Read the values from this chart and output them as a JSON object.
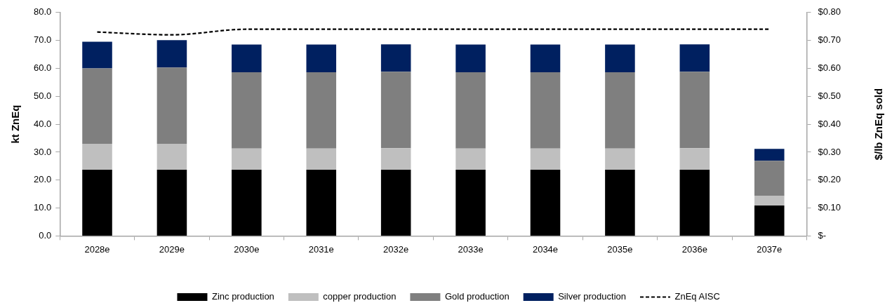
{
  "chart_data": {
    "type": "bar",
    "stacked": true,
    "categories": [
      "2028e",
      "2029e",
      "2030e",
      "2031e",
      "2032e",
      "2033e",
      "2034e",
      "2035e",
      "2036e",
      "2037e"
    ],
    "ylabel": "kt ZnEq",
    "y2label": "$/lb ZnEq sold",
    "ylim": [
      0,
      80
    ],
    "yticks": [
      {
        "value": 0,
        "label": "0.0"
      },
      {
        "value": 10,
        "label": "10.0"
      },
      {
        "value": 20,
        "label": "20.0"
      },
      {
        "value": 30,
        "label": "30.0"
      },
      {
        "value": 40,
        "label": "40.0"
      },
      {
        "value": 50,
        "label": "50.0"
      },
      {
        "value": 60,
        "label": "60.0"
      },
      {
        "value": 70,
        "label": "70.0"
      },
      {
        "value": 80,
        "label": "80.0"
      }
    ],
    "y2lim": [
      0,
      0.8
    ],
    "y2ticks": [
      {
        "value": 0,
        "label": "$-"
      },
      {
        "value": 0.1,
        "label": "$0.10"
      },
      {
        "value": 0.2,
        "label": "$0.20"
      },
      {
        "value": 0.3,
        "label": "$0.30"
      },
      {
        "value": 0.4,
        "label": "$0.40"
      },
      {
        "value": 0.5,
        "label": "$0.50"
      },
      {
        "value": 0.6,
        "label": "$0.60"
      },
      {
        "value": 0.7,
        "label": "$0.70"
      },
      {
        "value": 0.8,
        "label": "$0.80"
      }
    ],
    "legend": "bottom",
    "series": [
      {
        "name": "Zinc production",
        "color": "#000000",
        "values": [
          23.7,
          23.7,
          23.7,
          23.7,
          23.7,
          23.7,
          23.7,
          23.7,
          23.7,
          10.9
        ]
      },
      {
        "name": "copper production",
        "color": "#bfbfbf",
        "values": [
          9.3,
          9.3,
          7.6,
          7.6,
          7.7,
          7.6,
          7.6,
          7.6,
          7.7,
          3.4
        ]
      },
      {
        "name": "Gold production",
        "color": "#7f7f7f",
        "values": [
          27.0,
          27.3,
          27.3,
          27.3,
          27.4,
          27.3,
          27.3,
          27.3,
          27.4,
          12.6
        ]
      },
      {
        "name": "Silver production",
        "color": "#002060",
        "values": [
          9.5,
          9.8,
          9.9,
          9.9,
          9.8,
          9.9,
          9.9,
          9.9,
          9.8,
          4.3
        ]
      },
      {
        "name": "ZnEq AISC",
        "type": "line",
        "axis": "y2",
        "color": "#000000",
        "line_style": "dashed",
        "marker": "none",
        "values": [
          0.73,
          0.72,
          0.74,
          0.74,
          0.74,
          0.74,
          0.74,
          0.74,
          0.74,
          0.74
        ]
      }
    ]
  }
}
